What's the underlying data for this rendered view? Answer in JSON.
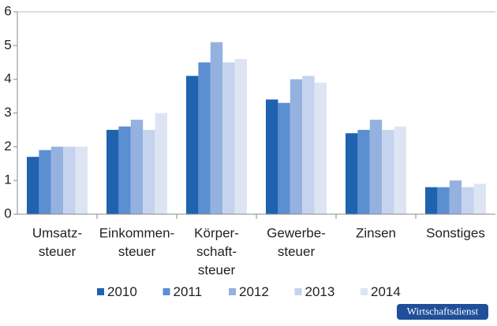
{
  "chart_data": {
    "type": "bar",
    "categories": [
      [
        "Umsatz-",
        "steuer"
      ],
      [
        "Einkommen-",
        "steuer"
      ],
      [
        "Körper-",
        "schaft-",
        "steuer"
      ],
      [
        "Gewerbe-",
        "steuer"
      ],
      [
        "Zinsen"
      ],
      [
        "Sonstiges"
      ]
    ],
    "series": [
      {
        "name": "2010",
        "color": "#1f63ae",
        "values": [
          1.7,
          2.5,
          4.1,
          3.4,
          2.4,
          0.8
        ]
      },
      {
        "name": "2011",
        "color": "#5b8fd1",
        "values": [
          1.9,
          2.6,
          4.5,
          3.3,
          2.5,
          0.8
        ]
      },
      {
        "name": "2012",
        "color": "#95b1e0",
        "values": [
          2.0,
          2.8,
          5.1,
          4.0,
          2.8,
          1.0
        ]
      },
      {
        "name": "2013",
        "color": "#c5d3ef",
        "values": [
          2.0,
          2.5,
          4.5,
          4.1,
          2.5,
          0.8
        ]
      },
      {
        "name": "2014",
        "color": "#dde5f5",
        "values": [
          2.0,
          3.0,
          4.6,
          3.9,
          2.6,
          0.9
        ]
      }
    ],
    "ylim": [
      0,
      6
    ],
    "yticks": [
      0,
      1,
      2,
      3,
      4,
      5,
      6
    ],
    "grid": false,
    "legend": "bottom",
    "source_badge": "Wirtschaftsdienst"
  }
}
